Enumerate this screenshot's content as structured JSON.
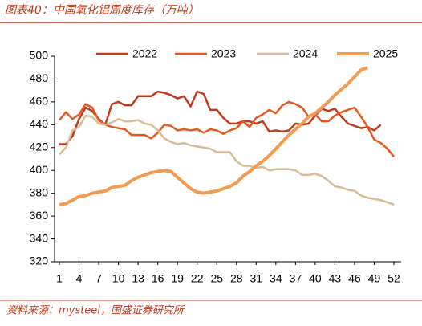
{
  "chart_data": {
    "type": "line",
    "title": "图表40：中国氧化铝周度库存（万吨）",
    "source": "资料来源：mysteel，国盛证券研究所",
    "x": [
      1,
      2,
      3,
      4,
      5,
      6,
      7,
      8,
      9,
      10,
      11,
      12,
      13,
      14,
      15,
      16,
      17,
      18,
      19,
      20,
      21,
      22,
      23,
      24,
      25,
      26,
      27,
      28,
      29,
      30,
      31,
      32,
      33,
      34,
      35,
      36,
      37,
      38,
      39,
      40,
      41,
      42,
      43,
      44,
      45,
      46,
      47,
      48,
      49,
      50,
      51,
      52
    ],
    "xlim": [
      1,
      52
    ],
    "xticks": [
      1,
      4,
      7,
      10,
      13,
      16,
      19,
      22,
      25,
      28,
      31,
      34,
      37,
      40,
      43,
      46,
      49,
      52
    ],
    "ylim": [
      320,
      500
    ],
    "yticks": [
      320,
      340,
      360,
      380,
      400,
      420,
      440,
      460,
      480,
      500
    ],
    "legend_position": "top",
    "series": [
      {
        "name": "2022",
        "color": "#c0391b",
        "width": 2.5,
        "values": [
          423,
          423,
          430,
          445,
          455,
          452,
          445,
          440,
          458,
          460,
          457,
          457,
          465,
          465,
          465,
          469,
          468,
          466,
          463,
          465,
          456,
          469,
          467,
          453,
          453,
          446,
          441,
          441,
          443,
          443,
          441,
          443,
          434,
          435,
          434,
          435,
          441,
          440,
          441,
          448,
          454,
          452,
          454,
          447,
          441,
          439,
          437,
          438,
          435,
          440,
          null,
          null
        ]
      },
      {
        "name": "2023",
        "color": "#e8561e",
        "width": 2.5,
        "values": [
          444,
          451,
          445,
          449,
          458,
          455,
          444,
          440,
          438,
          437,
          436,
          431,
          431,
          431,
          428,
          433,
          440,
          439,
          435,
          436,
          435,
          436,
          433,
          436,
          435,
          432,
          435,
          437,
          443,
          438,
          446,
          449,
          453,
          450,
          457,
          460,
          458,
          455,
          447,
          449,
          443,
          443,
          448,
          451,
          453,
          455,
          447,
          438,
          427,
          424,
          419,
          412
        ]
      },
      {
        "name": "2024",
        "color": "#d9bc97",
        "width": 2.5,
        "values": [
          414,
          420,
          435,
          438,
          448,
          447,
          441,
          440,
          442,
          445,
          443,
          443,
          444,
          441,
          440,
          435,
          428,
          425,
          423,
          424,
          422,
          421,
          420,
          419,
          416,
          416,
          416,
          408,
          404,
          404,
          402,
          403,
          400,
          401,
          401,
          401,
          400,
          396,
          396,
          397,
          395,
          391,
          386,
          385,
          383,
          382,
          378,
          376,
          375,
          374,
          372,
          370
        ]
      },
      {
        "name": "2025",
        "color": "#f39b4f",
        "width": 4,
        "values": [
          370,
          371,
          374,
          377,
          378,
          380,
          381,
          382,
          385,
          386,
          387,
          391,
          394,
          396,
          398,
          399,
          400,
          399,
          394,
          389,
          384,
          381,
          380,
          381,
          382,
          384,
          386,
          389,
          395,
          399,
          404,
          408,
          413,
          419,
          425,
          431,
          436,
          441,
          447,
          450,
          455,
          460,
          466,
          471,
          476,
          482,
          488,
          490,
          null,
          null,
          null,
          null
        ]
      }
    ]
  }
}
